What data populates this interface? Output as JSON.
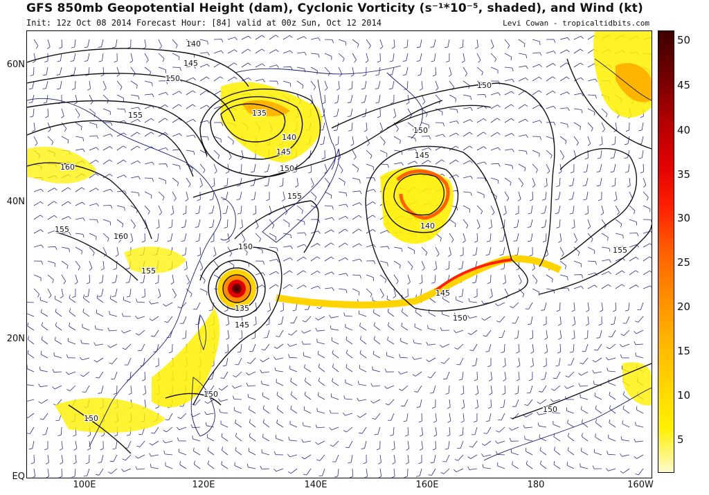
{
  "header": {
    "title": "GFS 850mb Geopotential Height (dam), Cyclonic Vorticity (s⁻¹*10⁻⁵, shaded), and Wind (kt)",
    "subtitle": "Init: 12z Oct 08 2014 Forecast Hour: [84] valid at 00z Sun, Oct 12 2014",
    "credit": "Levi Cowan - tropicaltidbits.com"
  },
  "axes": {
    "lat_labels": [
      "60N",
      "40N",
      "20N",
      "EQ"
    ],
    "lon_labels": [
      "100E",
      "120E",
      "140E",
      "160E",
      "180",
      "160W"
    ]
  },
  "colorbar": {
    "labels": [
      "50",
      "45",
      "40",
      "35",
      "30",
      "25",
      "20",
      "15",
      "10",
      "5"
    ],
    "colors": [
      "#fffbcc",
      "#fff000",
      "#ffd400",
      "#ffb400",
      "#ff8c00",
      "#ff6000",
      "#ff2000",
      "#e00000",
      "#b00000",
      "#700000",
      "#400000"
    ]
  },
  "contour_labels": [
    {
      "label": "140",
      "name": "contour-140-nw"
    },
    {
      "label": "145",
      "name": "contour-145-nw"
    },
    {
      "label": "150",
      "name": "contour-150-siberia"
    },
    {
      "label": "155",
      "name": "contour-155-mongolia"
    },
    {
      "label": "160",
      "name": "contour-160-west"
    },
    {
      "label": "155",
      "name": "contour-155-china"
    },
    {
      "label": "160",
      "name": "contour-160-china"
    },
    {
      "label": "155",
      "name": "contour-155-south-china"
    },
    {
      "label": "135",
      "name": "contour-135-okhotsk"
    },
    {
      "label": "140",
      "name": "contour-140-okhotsk"
    },
    {
      "label": "145",
      "name": "contour-145-okhotsk"
    },
    {
      "label": "150",
      "name": "contour-150-okhotsk"
    },
    {
      "label": "155",
      "name": "contour-155-japan"
    },
    {
      "label": "150",
      "name": "contour-150-japan-sea"
    },
    {
      "label": "135",
      "name": "contour-135-typhoon"
    },
    {
      "label": "145",
      "name": "contour-145-typhoon"
    },
    {
      "label": "150",
      "name": "contour-150-kuril"
    },
    {
      "label": "145",
      "name": "contour-145-nw-pacific-low"
    },
    {
      "label": "140",
      "name": "contour-140-nw-pacific-low"
    },
    {
      "label": "150",
      "name": "contour-150-bering"
    },
    {
      "label": "145",
      "name": "contour-145-trough"
    },
    {
      "label": "150",
      "name": "contour-150-trough"
    },
    {
      "label": "155",
      "name": "contour-155-east"
    },
    {
      "label": "150",
      "name": "contour-150-philippines"
    },
    {
      "label": "150",
      "name": "contour-150-indochina"
    },
    {
      "label": "150",
      "name": "contour-150-tropical-east"
    }
  ]
}
